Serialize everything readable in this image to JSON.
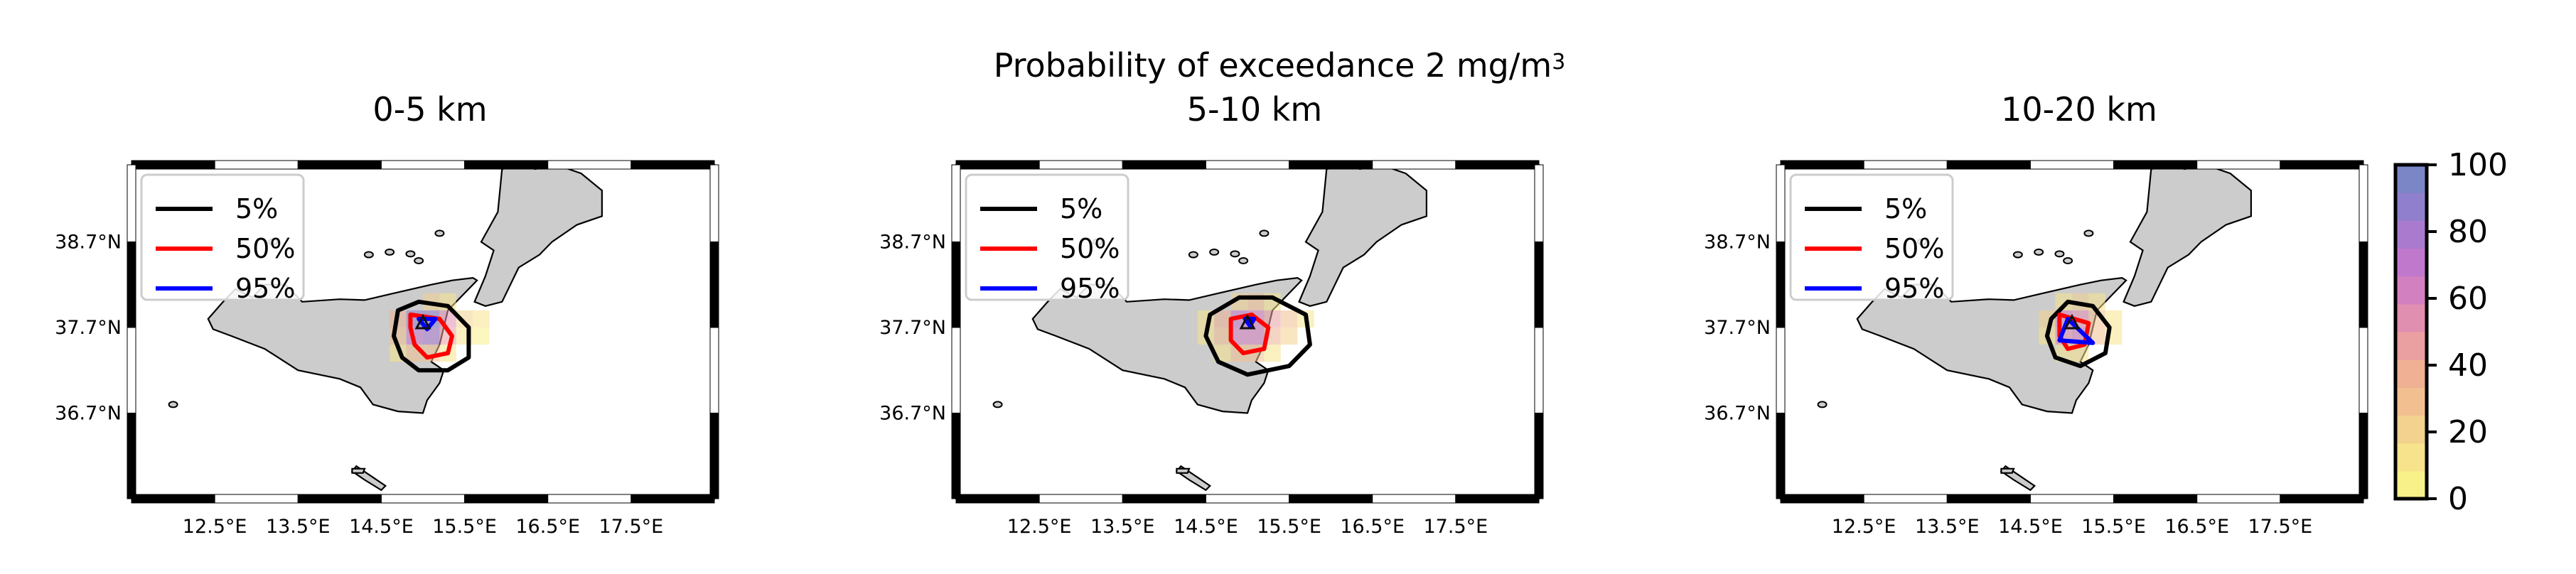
{
  "figure": {
    "suptitle_main": "Probability of exceedance 2 mg/m",
    "suptitle_sup": "3"
  },
  "panels": [
    {
      "title": "0-5 km"
    },
    {
      "title": "5-10 km"
    },
    {
      "title": "10-20 km"
    }
  ],
  "axes": {
    "lon_ticks": [
      "12.5°E",
      "13.5°E",
      "14.5°E",
      "15.5°E",
      "16.5°E",
      "17.5°E"
    ],
    "lon_values": [
      12.5,
      13.5,
      14.5,
      15.5,
      16.5,
      17.5
    ],
    "lat_ticks": [
      "38.7°N",
      "37.7°N",
      "36.7°N"
    ],
    "lat_values": [
      38.7,
      37.7,
      36.7
    ],
    "extent": {
      "lon": [
        11.5,
        18.5
      ],
      "lat": [
        35.7,
        39.6
      ]
    }
  },
  "legend": {
    "entries": [
      {
        "label": "5%",
        "color": "#000000"
      },
      {
        "label": "50%",
        "color": "#ff0000"
      },
      {
        "label": "95%",
        "color": "#0000ff"
      }
    ]
  },
  "colorbar": {
    "ticks": [
      "0",
      "20",
      "40",
      "60",
      "80",
      "100"
    ],
    "tick_values": [
      0,
      20,
      40,
      60,
      80,
      100
    ],
    "colors": [
      "#f8f18a",
      "#f6e38c",
      "#f3d18e",
      "#f2c090",
      "#efb093",
      "#ea9fa0",
      "#e08fb0",
      "#d380c0",
      "#c078cc",
      "#a97ace",
      "#8f7fcc",
      "#7b86c6"
    ]
  },
  "chart_data": {
    "type": "heatmap",
    "vent": {
      "lon": 15.0,
      "lat": 37.75
    },
    "panels": [
      {
        "title": "0-5 km",
        "cells": [
          {
            "lon": 15.1,
            "lat": 38.0,
            "p": 20
          },
          {
            "lon": 15.3,
            "lat": 38.0,
            "p": 15
          },
          {
            "lon": 14.7,
            "lat": 37.8,
            "p": 35
          },
          {
            "lon": 14.9,
            "lat": 37.8,
            "p": 90
          },
          {
            "lon": 15.1,
            "lat": 37.8,
            "p": 85
          },
          {
            "lon": 15.3,
            "lat": 37.8,
            "p": 55
          },
          {
            "lon": 15.5,
            "lat": 37.8,
            "p": 20
          },
          {
            "lon": 15.7,
            "lat": 37.8,
            "p": 10
          },
          {
            "lon": 14.7,
            "lat": 37.6,
            "p": 30
          },
          {
            "lon": 14.9,
            "lat": 37.6,
            "p": 70
          },
          {
            "lon": 15.1,
            "lat": 37.6,
            "p": 75
          },
          {
            "lon": 15.3,
            "lat": 37.6,
            "p": 45
          },
          {
            "lon": 15.5,
            "lat": 37.6,
            "p": 15
          },
          {
            "lon": 15.7,
            "lat": 37.6,
            "p": 5
          },
          {
            "lon": 14.7,
            "lat": 37.4,
            "p": 10
          },
          {
            "lon": 14.9,
            "lat": 37.4,
            "p": 30
          },
          {
            "lon": 15.1,
            "lat": 37.4,
            "p": 25
          },
          {
            "lon": 15.3,
            "lat": 37.4,
            "p": 10
          }
        ],
        "contours": {
          "p5": [
            [
              14.7,
              37.9
            ],
            [
              14.95,
              38.0
            ],
            [
              15.3,
              37.95
            ],
            [
              15.55,
              37.7
            ],
            [
              15.55,
              37.35
            ],
            [
              15.3,
              37.2
            ],
            [
              14.95,
              37.2
            ],
            [
              14.75,
              37.35
            ],
            [
              14.65,
              37.6
            ]
          ],
          "p50": [
            [
              14.85,
              37.85
            ],
            [
              15.2,
              37.8
            ],
            [
              15.35,
              37.6
            ],
            [
              15.3,
              37.4
            ],
            [
              15.05,
              37.35
            ],
            [
              14.9,
              37.5
            ],
            [
              14.85,
              37.7
            ]
          ],
          "p95": [
            [
              14.95,
              37.8
            ],
            [
              15.15,
              37.8
            ],
            [
              15.05,
              37.68
            ]
          ]
        }
      },
      {
        "title": "5-10 km",
        "cells": [
          {
            "lon": 14.9,
            "lat": 38.0,
            "p": 20
          },
          {
            "lon": 15.1,
            "lat": 38.0,
            "p": 25
          },
          {
            "lon": 15.3,
            "lat": 38.0,
            "p": 15
          },
          {
            "lon": 14.5,
            "lat": 37.8,
            "p": 10
          },
          {
            "lon": 14.7,
            "lat": 37.8,
            "p": 35
          },
          {
            "lon": 14.9,
            "lat": 37.8,
            "p": 70
          },
          {
            "lon": 15.1,
            "lat": 37.8,
            "p": 65
          },
          {
            "lon": 15.3,
            "lat": 37.8,
            "p": 45
          },
          {
            "lon": 15.5,
            "lat": 37.8,
            "p": 25
          },
          {
            "lon": 15.7,
            "lat": 37.8,
            "p": 10
          },
          {
            "lon": 14.5,
            "lat": 37.6,
            "p": 10
          },
          {
            "lon": 14.7,
            "lat": 37.6,
            "p": 30
          },
          {
            "lon": 14.9,
            "lat": 37.6,
            "p": 60
          },
          {
            "lon": 15.1,
            "lat": 37.6,
            "p": 60
          },
          {
            "lon": 15.3,
            "lat": 37.6,
            "p": 40
          },
          {
            "lon": 15.5,
            "lat": 37.6,
            "p": 20
          },
          {
            "lon": 14.7,
            "lat": 37.4,
            "p": 15
          },
          {
            "lon": 14.9,
            "lat": 37.4,
            "p": 25
          },
          {
            "lon": 15.1,
            "lat": 37.4,
            "p": 25
          },
          {
            "lon": 15.3,
            "lat": 37.4,
            "p": 15
          }
        ],
        "contours": {
          "p5": [
            [
              14.55,
              37.85
            ],
            [
              14.9,
              38.05
            ],
            [
              15.3,
              38.05
            ],
            [
              15.7,
              37.85
            ],
            [
              15.75,
              37.5
            ],
            [
              15.5,
              37.25
            ],
            [
              15.0,
              37.15
            ],
            [
              14.65,
              37.3
            ],
            [
              14.5,
              37.6
            ]
          ],
          "p50": [
            [
              14.8,
              37.8
            ],
            [
              15.05,
              37.85
            ],
            [
              15.25,
              37.7
            ],
            [
              15.2,
              37.45
            ],
            [
              14.95,
              37.4
            ],
            [
              14.8,
              37.55
            ]
          ],
          "p95": [
            [
              14.97,
              37.8
            ],
            [
              15.08,
              37.8
            ],
            [
              15.03,
              37.72
            ]
          ]
        }
      },
      {
        "title": "10-20 km",
        "cells": [
          {
            "lon": 14.9,
            "lat": 38.0,
            "p": 15
          },
          {
            "lon": 15.1,
            "lat": 38.0,
            "p": 20
          },
          {
            "lon": 15.3,
            "lat": 38.0,
            "p": 10
          },
          {
            "lon": 14.7,
            "lat": 37.8,
            "p": 20
          },
          {
            "lon": 14.9,
            "lat": 37.8,
            "p": 60
          },
          {
            "lon": 15.1,
            "lat": 37.8,
            "p": 55
          },
          {
            "lon": 15.3,
            "lat": 37.8,
            "p": 30
          },
          {
            "lon": 15.5,
            "lat": 37.8,
            "p": 10
          },
          {
            "lon": 14.7,
            "lat": 37.6,
            "p": 15
          },
          {
            "lon": 14.9,
            "lat": 37.6,
            "p": 55
          },
          {
            "lon": 15.1,
            "lat": 37.6,
            "p": 60
          },
          {
            "lon": 15.3,
            "lat": 37.6,
            "p": 30
          },
          {
            "lon": 15.5,
            "lat": 37.6,
            "p": 10
          },
          {
            "lon": 14.9,
            "lat": 37.4,
            "p": 15
          },
          {
            "lon": 15.1,
            "lat": 37.4,
            "p": 15
          }
        ],
        "contours": {
          "p5": [
            [
              14.75,
              37.8
            ],
            [
              14.95,
              38.0
            ],
            [
              15.25,
              37.95
            ],
            [
              15.45,
              37.7
            ],
            [
              15.4,
              37.4
            ],
            [
              15.1,
              37.25
            ],
            [
              14.8,
              37.35
            ],
            [
              14.7,
              37.6
            ]
          ],
          "p50": [
            [
              14.85,
              37.85
            ],
            [
              15.2,
              37.75
            ],
            [
              15.15,
              37.5
            ],
            [
              14.95,
              37.45
            ],
            [
              14.85,
              37.6
            ]
          ],
          "p95": [
            [
              14.95,
              37.8
            ],
            [
              14.85,
              37.55
            ],
            [
              15.25,
              37.52
            ]
          ]
        }
      }
    ]
  }
}
